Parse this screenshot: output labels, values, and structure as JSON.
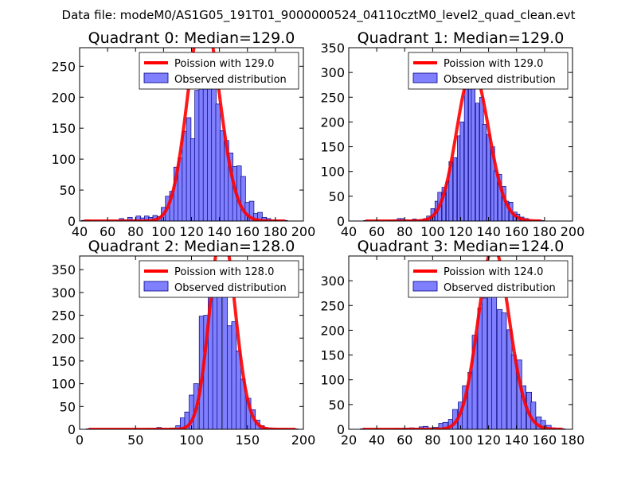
{
  "figure_title": "Data file: modeM0/AS1G05_191T01_9000000524_04110cztM0_level2_quad_clean.evt",
  "colors": {
    "bar_fill": "#8080ff",
    "bar_edge": "#00007f",
    "curve": "#ff0000"
  },
  "chart_data": [
    {
      "type": "bar",
      "title": "Quadrant 0: Median=129.0",
      "median": 129.0,
      "xlim": [
        40,
        200
      ],
      "ylim": [
        0,
        280
      ],
      "xticks": [
        40,
        60,
        80,
        100,
        120,
        140,
        160,
        180,
        200
      ],
      "yticks": [
        0,
        50,
        100,
        150,
        200,
        250
      ],
      "legend": [
        "Poission with 129.0",
        "Observed distribution"
      ],
      "bin_width": 3.3,
      "bins": [
        [
          43,
          1
        ],
        [
          46,
          1
        ],
        [
          49,
          0
        ],
        [
          52,
          0
        ],
        [
          55,
          0
        ],
        [
          58,
          0
        ],
        [
          61,
          0
        ],
        [
          64,
          0
        ],
        [
          67,
          0
        ],
        [
          70,
          4
        ],
        [
          73,
          2
        ],
        [
          76,
          6
        ],
        [
          79,
          2
        ],
        [
          82,
          8
        ],
        [
          85,
          5
        ],
        [
          88,
          8
        ],
        [
          91,
          6
        ],
        [
          94,
          9
        ],
        [
          97,
          7
        ],
        [
          100,
          22
        ],
        [
          103,
          40
        ],
        [
          106,
          48
        ],
        [
          109,
          87
        ],
        [
          112,
          102
        ],
        [
          115,
          145
        ],
        [
          118,
          167
        ],
        [
          121,
          133
        ],
        [
          124,
          211
        ],
        [
          127,
          220
        ],
        [
          130,
          270
        ],
        [
          133,
          248
        ],
        [
          136,
          215
        ],
        [
          139,
          189
        ],
        [
          142,
          146
        ],
        [
          145,
          130
        ],
        [
          148,
          110
        ],
        [
          151,
          88
        ],
        [
          154,
          89
        ],
        [
          157,
          72
        ],
        [
          160,
          30
        ],
        [
          163,
          32
        ],
        [
          166,
          12
        ],
        [
          169,
          14
        ],
        [
          172,
          6
        ],
        [
          175,
          4
        ],
        [
          178,
          2
        ],
        [
          181,
          1
        ],
        [
          184,
          1
        ],
        [
          187,
          1
        ]
      ]
    },
    {
      "type": "bar",
      "title": "Quadrant 1: Median=129.0",
      "median": 129.0,
      "xlim": [
        40,
        200
      ],
      "ylim": [
        0,
        350
      ],
      "xticks": [
        40,
        60,
        80,
        100,
        120,
        140,
        160,
        180,
        200
      ],
      "yticks": [
        0,
        50,
        100,
        150,
        200,
        250,
        300,
        350
      ],
      "legend": [
        "Poission with 129.0",
        "Observed distribution"
      ],
      "bin_width": 2.7,
      "bins": [
        [
          52,
          1
        ],
        [
          55,
          0
        ],
        [
          58,
          0
        ],
        [
          61,
          0
        ],
        [
          64,
          0
        ],
        [
          67,
          0
        ],
        [
          70,
          1
        ],
        [
          73,
          2
        ],
        [
          76,
          5
        ],
        [
          78,
          5
        ],
        [
          81,
          2
        ],
        [
          84,
          1
        ],
        [
          87,
          4
        ],
        [
          89,
          2
        ],
        [
          92,
          3
        ],
        [
          95,
          5
        ],
        [
          97,
          10
        ],
        [
          100,
          25
        ],
        [
          103,
          40
        ],
        [
          105,
          58
        ],
        [
          108,
          68
        ],
        [
          111,
          80
        ],
        [
          113,
          120
        ],
        [
          116,
          128
        ],
        [
          119,
          172
        ],
        [
          121,
          200
        ],
        [
          124,
          272
        ],
        [
          127,
          313
        ],
        [
          129,
          305
        ],
        [
          132,
          238
        ],
        [
          135,
          250
        ],
        [
          137,
          195
        ],
        [
          140,
          175
        ],
        [
          143,
          150
        ],
        [
          145,
          101
        ],
        [
          148,
          94
        ],
        [
          151,
          70
        ],
        [
          153,
          40
        ],
        [
          156,
          38
        ],
        [
          159,
          18
        ],
        [
          161,
          14
        ],
        [
          164,
          8
        ],
        [
          167,
          5
        ],
        [
          169,
          2
        ],
        [
          172,
          1
        ],
        [
          175,
          1
        ],
        [
          178,
          1
        ]
      ]
    },
    {
      "type": "bar",
      "title": "Quadrant 2: Median=128.0",
      "median": 128.0,
      "xlim": [
        0,
        200
      ],
      "ylim": [
        0,
        380
      ],
      "xticks": [
        0,
        50,
        100,
        150,
        200
      ],
      "yticks": [
        0,
        50,
        100,
        150,
        200,
        250,
        300,
        350
      ],
      "legend": [
        "Poission with 128.0",
        "Observed distribution"
      ],
      "bin_width": 4.2,
      "bins": [
        [
          8,
          1
        ],
        [
          12,
          0
        ],
        [
          16,
          0
        ],
        [
          20,
          0
        ],
        [
          25,
          0
        ],
        [
          29,
          0
        ],
        [
          33,
          0
        ],
        [
          37,
          0
        ],
        [
          41,
          0
        ],
        [
          46,
          0
        ],
        [
          50,
          0
        ],
        [
          54,
          0
        ],
        [
          58,
          0
        ],
        [
          62,
          1
        ],
        [
          67,
          1
        ],
        [
          71,
          4
        ],
        [
          75,
          2
        ],
        [
          79,
          1
        ],
        [
          83,
          3
        ],
        [
          88,
          8
        ],
        [
          92,
          25
        ],
        [
          96,
          38
        ],
        [
          100,
          75
        ],
        [
          104,
          100
        ],
        [
          109,
          248
        ],
        [
          113,
          250
        ],
        [
          117,
          335
        ],
        [
          121,
          335
        ],
        [
          125,
          340
        ],
        [
          130,
          297
        ],
        [
          134,
          227
        ],
        [
          138,
          236
        ],
        [
          142,
          172
        ],
        [
          146,
          110
        ],
        [
          151,
          68
        ],
        [
          155,
          43
        ],
        [
          159,
          20
        ],
        [
          163,
          8
        ],
        [
          167,
          3
        ],
        [
          172,
          2
        ],
        [
          176,
          1
        ],
        [
          180,
          1
        ],
        [
          184,
          1
        ],
        [
          188,
          0
        ],
        [
          193,
          1
        ]
      ]
    },
    {
      "type": "bar",
      "title": "Quadrant 3: Median=124.0",
      "median": 124.0,
      "xlim": [
        20,
        180
      ],
      "ylim": [
        0,
        350
      ],
      "xticks": [
        20,
        40,
        60,
        80,
        100,
        120,
        140,
        160,
        180
      ],
      "yticks": [
        0,
        50,
        100,
        150,
        200,
        250,
        300
      ],
      "legend": [
        "Poission with 124.0",
        "Observed distribution"
      ],
      "bin_width": 3.5,
      "bins": [
        [
          30,
          1
        ],
        [
          33,
          0
        ],
        [
          37,
          0
        ],
        [
          40,
          0
        ],
        [
          44,
          0
        ],
        [
          47,
          0
        ],
        [
          51,
          0
        ],
        [
          54,
          1
        ],
        [
          58,
          1
        ],
        [
          61,
          2
        ],
        [
          65,
          3
        ],
        [
          68,
          2
        ],
        [
          72,
          5
        ],
        [
          75,
          6
        ],
        [
          79,
          3
        ],
        [
          82,
          4
        ],
        [
          86,
          12
        ],
        [
          89,
          14
        ],
        [
          93,
          20
        ],
        [
          96,
          40
        ],
        [
          100,
          55
        ],
        [
          103,
          88
        ],
        [
          107,
          115
        ],
        [
          110,
          190
        ],
        [
          114,
          245
        ],
        [
          117,
          265
        ],
        [
          121,
          318
        ],
        [
          124,
          300
        ],
        [
          128,
          242
        ],
        [
          131,
          235
        ],
        [
          135,
          201
        ],
        [
          138,
          150
        ],
        [
          142,
          140
        ],
        [
          145,
          88
        ],
        [
          149,
          75
        ],
        [
          152,
          55
        ],
        [
          156,
          25
        ],
        [
          159,
          18
        ],
        [
          163,
          8
        ],
        [
          166,
          3
        ],
        [
          170,
          2
        ],
        [
          173,
          1
        ]
      ]
    }
  ]
}
